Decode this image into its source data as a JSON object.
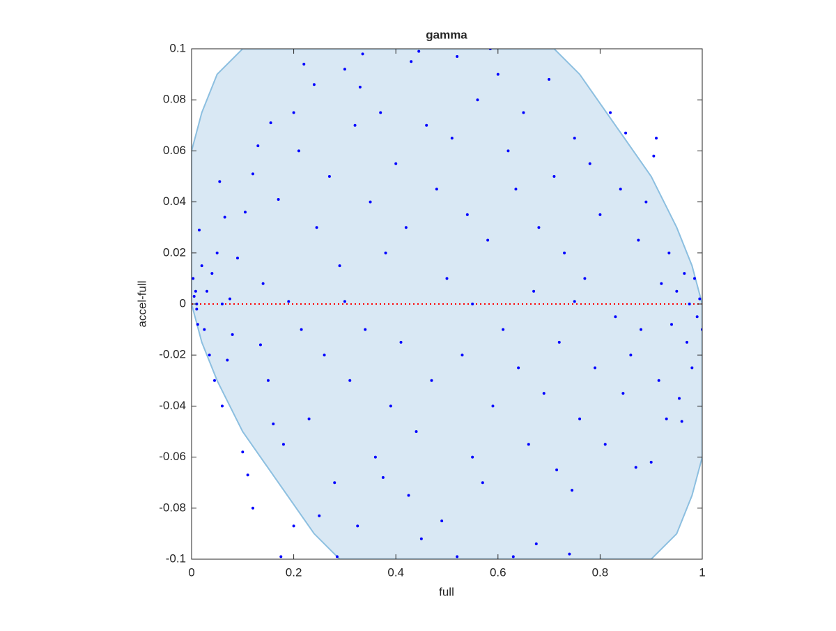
{
  "chart_data": {
    "type": "scatter",
    "title": "gamma",
    "x_label": "full",
    "y_label": "accel-full",
    "xlim": [
      0,
      1
    ],
    "ylim": [
      -0.1,
      0.1
    ],
    "xticks": [
      0,
      0.2,
      0.4,
      0.6,
      0.8,
      1
    ],
    "yticks": [
      -0.1,
      -0.08,
      -0.06,
      -0.04,
      -0.02,
      0,
      0.02,
      0.04,
      0.06,
      0.08,
      0.1
    ],
    "grid": false,
    "region": {
      "color": "#d9e8f4",
      "edge_color": "#8cbfe0",
      "x": [
        0,
        0.02,
        0.05,
        0.1,
        0.71,
        0.76,
        0.83,
        0.9,
        0.95,
        0.98,
        1,
        1,
        0.98,
        0.95,
        0.9,
        0.29,
        0.24,
        0.17,
        0.1,
        0.05,
        0.02,
        0
      ],
      "y": [
        0.06,
        0.075,
        0.09,
        0.1,
        0.1,
        0.09,
        0.07,
        0.05,
        0.03,
        0.015,
        0,
        -0.06,
        -0.075,
        -0.09,
        -0.1,
        -0.1,
        -0.09,
        -0.07,
        -0.05,
        -0.03,
        -0.015,
        0
      ]
    },
    "reference_line": {
      "y": 0,
      "color": "#ff0000"
    },
    "series": [
      {
        "color": "#0000ff",
        "x": [
          0.005,
          0.01,
          0.003,
          0.008,
          0.012,
          0.02,
          0.015,
          0.025,
          0.03,
          0.035,
          0.04,
          0.045,
          0.05,
          0.055,
          0.06,
          0.065,
          0.07,
          0.075,
          0.08,
          0.09,
          0.1,
          0.105,
          0.11,
          0.12,
          0.12,
          0.13,
          0.135,
          0.14,
          0.15,
          0.155,
          0.16,
          0.17,
          0.175,
          0.18,
          0.19,
          0.2,
          0.2,
          0.21,
          0.215,
          0.22,
          0.23,
          0.24,
          0.245,
          0.25,
          0.26,
          0.27,
          0.28,
          0.285,
          0.29,
          0.3,
          0.31,
          0.32,
          0.325,
          0.33,
          0.335,
          0.34,
          0.35,
          0.36,
          0.37,
          0.375,
          0.38,
          0.39,
          0.4,
          0.41,
          0.42,
          0.425,
          0.43,
          0.44,
          0.445,
          0.45,
          0.46,
          0.47,
          0.48,
          0.49,
          0.5,
          0.51,
          0.52,
          0.52,
          0.53,
          0.54,
          0.55,
          0.56,
          0.57,
          0.58,
          0.585,
          0.59,
          0.6,
          0.61,
          0.62,
          0.63,
          0.635,
          0.64,
          0.65,
          0.66,
          0.67,
          0.675,
          0.68,
          0.69,
          0.7,
          0.71,
          0.715,
          0.72,
          0.73,
          0.74,
          0.745,
          0.75,
          0.76,
          0.77,
          0.78,
          0.79,
          0.8,
          0.81,
          0.82,
          0.83,
          0.84,
          0.845,
          0.85,
          0.86,
          0.87,
          0.875,
          0.88,
          0.89,
          0.9,
          0.905,
          0.91,
          0.915,
          0.92,
          0.93,
          0.935,
          0.94,
          0.95,
          0.955,
          0.96,
          0.965,
          0.97,
          0.975,
          0.98,
          0.985,
          0.99,
          0.995,
          1.0,
          0.01,
          0.06,
          0.3,
          0.55,
          0.75
        ],
        "values": [
          0.003,
          -0.002,
          0.01,
          0.005,
          -0.008,
          0.015,
          0.029,
          -0.01,
          0.005,
          -0.02,
          0.012,
          -0.03,
          0.02,
          0.048,
          -0.04,
          0.034,
          -0.022,
          0.002,
          -0.012,
          0.018,
          -0.058,
          0.036,
          -0.067,
          -0.08,
          0.051,
          0.062,
          -0.016,
          0.008,
          -0.03,
          0.071,
          -0.047,
          0.041,
          -0.099,
          -0.055,
          0.001,
          -0.087,
          0.075,
          0.06,
          -0.01,
          0.094,
          -0.045,
          0.086,
          0.03,
          -0.083,
          -0.02,
          0.05,
          -0.07,
          -0.099,
          0.015,
          0.092,
          -0.03,
          0.07,
          -0.087,
          0.085,
          0.098,
          -0.01,
          0.04,
          -0.06,
          0.075,
          -0.068,
          0.02,
          -0.04,
          0.055,
          -0.015,
          0.03,
          -0.075,
          0.095,
          -0.05,
          0.099,
          -0.092,
          0.07,
          -0.03,
          0.045,
          -0.085,
          0.01,
          0.065,
          0.097,
          -0.099,
          -0.02,
          0.035,
          -0.06,
          0.08,
          -0.07,
          0.025,
          0.1,
          -0.04,
          0.09,
          -0.01,
          0.06,
          -0.099,
          0.045,
          -0.025,
          0.075,
          -0.055,
          0.005,
          -0.094,
          0.03,
          -0.035,
          0.088,
          0.05,
          -0.065,
          -0.015,
          0.02,
          -0.098,
          -0.073,
          0.065,
          -0.045,
          0.01,
          0.055,
          -0.025,
          0.035,
          -0.055,
          0.075,
          -0.005,
          0.045,
          -0.035,
          0.067,
          -0.02,
          -0.064,
          0.025,
          -0.01,
          0.04,
          -0.062,
          0.058,
          0.065,
          -0.03,
          0.008,
          -0.045,
          0.02,
          -0.008,
          0.005,
          -0.037,
          -0.046,
          0.012,
          -0.015,
          0.0,
          -0.025,
          0.01,
          -0.005,
          0.002,
          -0.01,
          0.0,
          0.0,
          0.001,
          0.0,
          0.001
        ]
      }
    ]
  }
}
